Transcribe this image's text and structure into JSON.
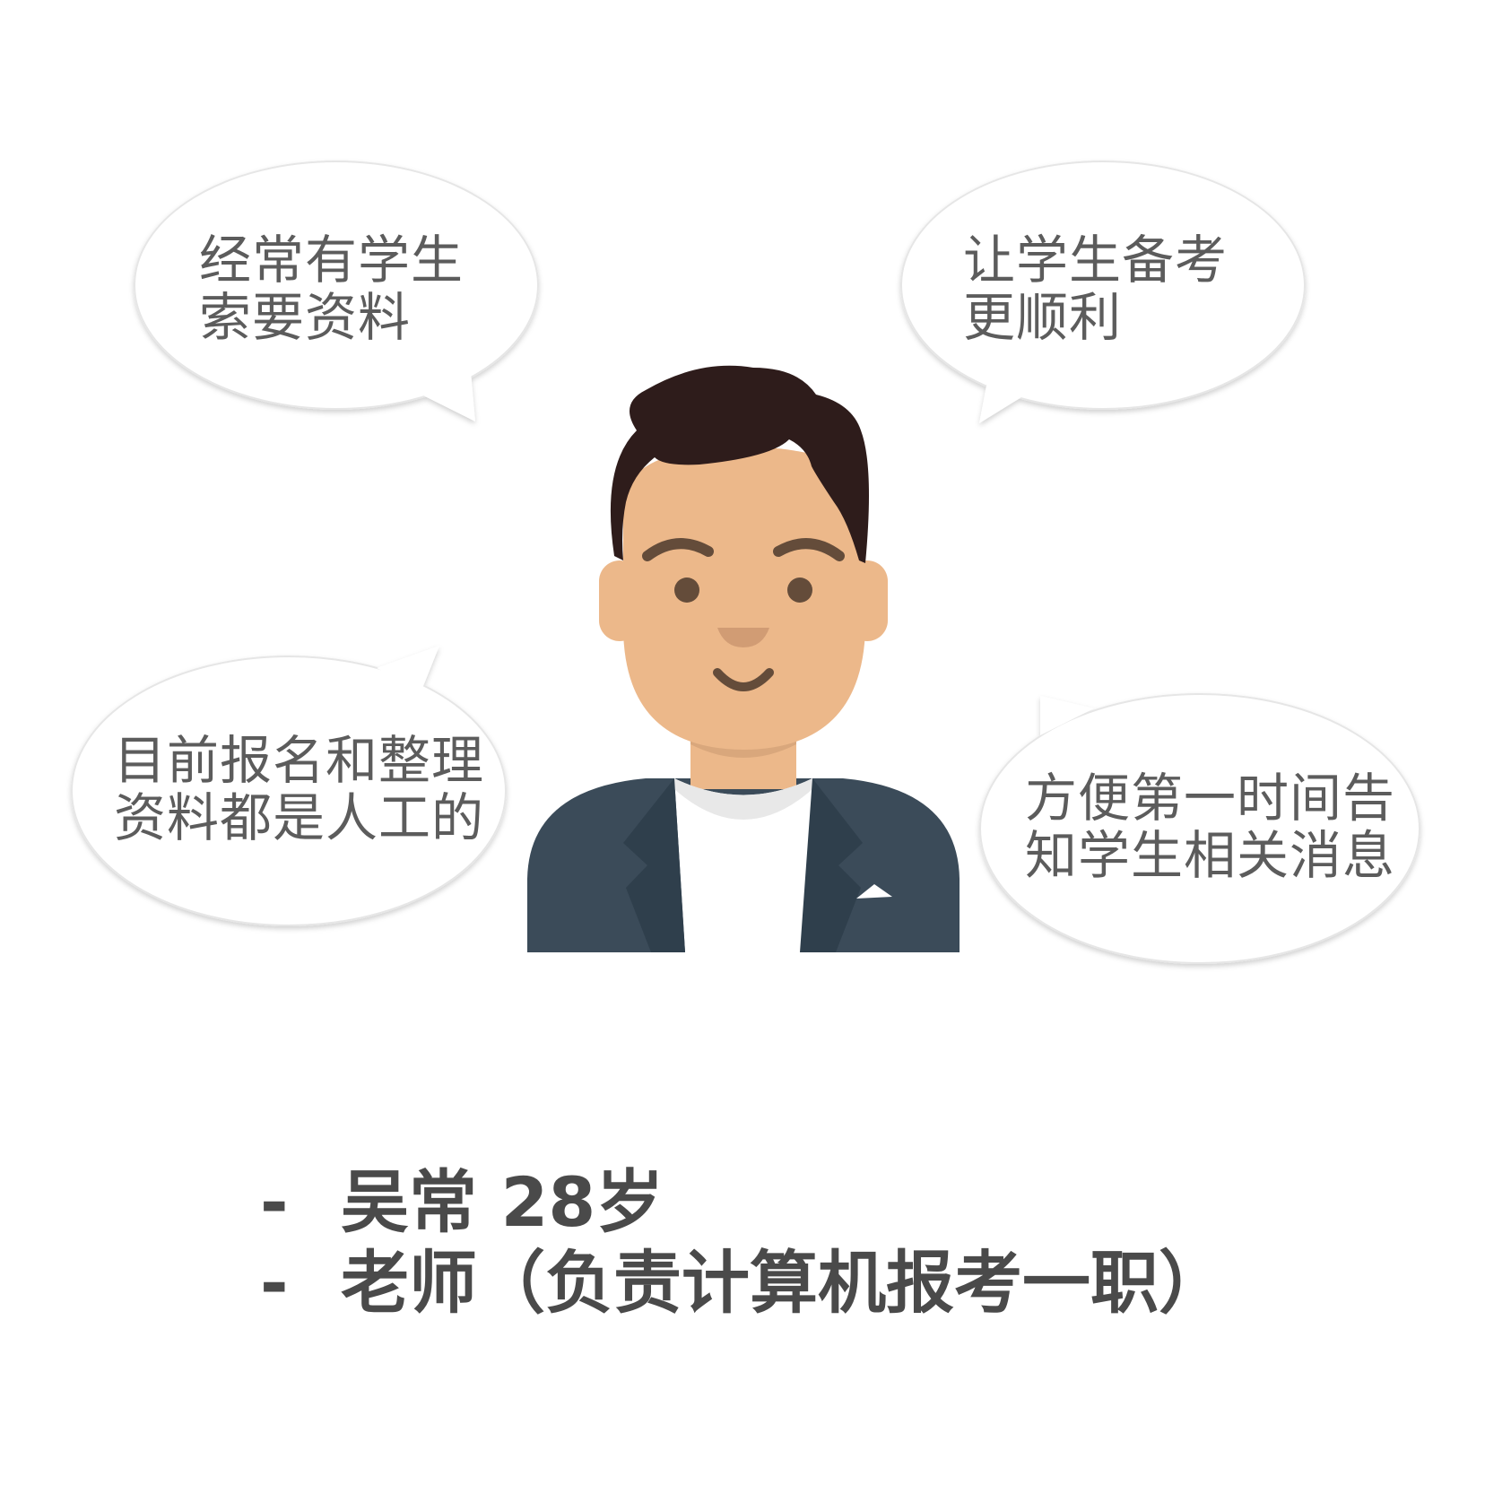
{
  "bubbles": {
    "top_left": {
      "line1": "经常有学生",
      "line2": "索要资料"
    },
    "top_right": {
      "line1": "让学生备考",
      "line2": "更顺利"
    },
    "bottom_left": {
      "line1": "目前报名和整理",
      "line2": "资料都是人工的"
    },
    "bottom_right": {
      "line1": "方便第一时间告",
      "line2": "知学生相关消息"
    }
  },
  "persona": {
    "bullet": "-",
    "name_age": "吴常 28岁",
    "role": "老师（负责计算机报考一职）"
  },
  "colors": {
    "hair": "#2e1c1b",
    "skin": "#ecb88a",
    "neck_shadow": "#d9a77c",
    "jacket": "#3b4b59",
    "jacket_dark": "#2f3f4c",
    "shirt": "#ffffff",
    "eyes": "#644c3a",
    "bubble_fill": "#ffffff",
    "bubble_stroke": "#e2e2e2",
    "text": "#5c5c5c"
  }
}
